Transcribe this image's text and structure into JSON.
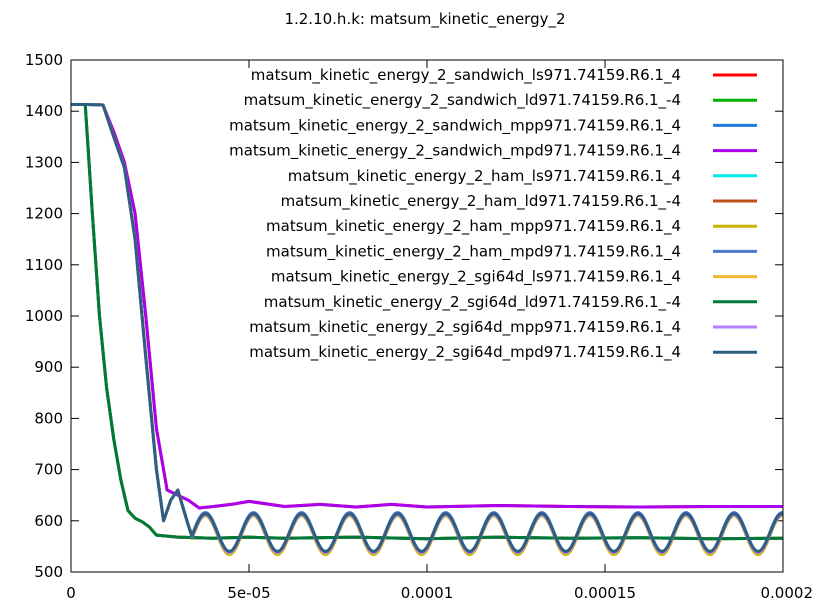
{
  "chart_data": {
    "type": "line",
    "title": "1.2.10.h.k: matsum_kinetic_energy_2",
    "xlabel": "",
    "ylabel": "",
    "xlim": [
      0,
      0.0002
    ],
    "ylim": [
      500,
      1500
    ],
    "x_ticks": [
      0,
      5e-05,
      0.0001,
      0.00015,
      0.0002
    ],
    "x_tick_labels": [
      "0",
      "5e-05",
      "0.0001",
      "0.00015",
      "0.0002"
    ],
    "y_ticks": [
      500,
      600,
      700,
      800,
      900,
      1000,
      1100,
      1200,
      1300,
      1400,
      1500
    ],
    "y_tick_labels": [
      "500",
      "600",
      "700",
      "800",
      "900",
      "1000",
      "1100",
      "1200",
      "1300",
      "1400",
      "1500"
    ],
    "grid": false,
    "legend_position": "top-right",
    "series": [
      {
        "name": "matsum_kinetic_energy_2_sandwich_ls971.74159.R6.1_4",
        "color": "#ff0000",
        "x": [
          0,
          5e-06,
          9e-06,
          1.2e-05,
          1.5e-05,
          1.8e-05,
          2.1e-05,
          2.4e-05,
          2.7e-05,
          3e-05,
          3.3e-05,
          3.6e-05,
          4e-05,
          4.5e-05,
          5e-05,
          6e-05,
          7e-05,
          8e-05,
          9e-05,
          0.0001,
          0.00012,
          0.00014,
          0.00016,
          0.00018,
          0.0002
        ],
        "y": [
          1413,
          1413,
          1412,
          1360,
          1300,
          1200,
          1000,
          780,
          660,
          650,
          640,
          625,
          628,
          632,
          638,
          628,
          632,
          627,
          632,
          627,
          630,
          628,
          627,
          628,
          628
        ]
      },
      {
        "name": "matsum_kinetic_energy_2_sandwich_ld971.74159.R6.1_-4",
        "color": "#00b000",
        "x": [
          0,
          4e-06,
          6e-06,
          8e-06,
          1e-05,
          1.2e-05,
          1.4e-05,
          1.6e-05,
          1.8e-05,
          2e-05,
          2.2e-05,
          2.4e-05,
          3e-05,
          4e-05,
          5e-05,
          6e-05,
          8e-05,
          0.0001,
          0.00012,
          0.00014,
          0.00016,
          0.00018,
          0.0002
        ],
        "y": [
          1413,
          1413,
          1200,
          1000,
          860,
          760,
          680,
          620,
          605,
          598,
          588,
          572,
          568,
          566,
          568,
          566,
          568,
          565,
          568,
          566,
          567,
          565,
          566
        ]
      },
      {
        "name": "matsum_kinetic_energy_2_sandwich_mpp971.74159.R6.1_4",
        "color": "#1e7bd8",
        "type": "oscillating",
        "base": 578,
        "amp": 38,
        "period": 1.35e-05,
        "phase": 3.1e-05
      },
      {
        "name": "matsum_kinetic_energy_2_sandwich_mpd971.74159.R6.1_4",
        "color": "#aa00ee",
        "x": [
          0,
          5e-06,
          9e-06,
          1.2e-05,
          1.5e-05,
          1.8e-05,
          2.1e-05,
          2.4e-05,
          2.7e-05,
          3e-05,
          3.3e-05,
          3.6e-05,
          4e-05,
          4.5e-05,
          5e-05,
          6e-05,
          7e-05,
          8e-05,
          9e-05,
          0.0001,
          0.00012,
          0.00014,
          0.00016,
          0.00018,
          0.0002
        ],
        "y": [
          1413,
          1413,
          1412,
          1360,
          1300,
          1200,
          1000,
          780,
          660,
          650,
          640,
          625,
          628,
          632,
          638,
          628,
          632,
          627,
          632,
          627,
          630,
          628,
          627,
          628,
          628
        ]
      },
      {
        "name": "matsum_kinetic_energy_2_ham_ls971.74159.R6.1_4",
        "color": "#00e8e8",
        "type": "oscillating",
        "base": 575,
        "amp": 36,
        "period": 1.35e-05,
        "phase": 3.1e-05
      },
      {
        "name": "matsum_kinetic_energy_2_ham_ld971.74159.R6.1_-4",
        "color": "#c05018",
        "x": [
          0,
          4e-06,
          6e-06,
          8e-06,
          1e-05,
          1.2e-05,
          1.4e-05,
          1.6e-05,
          1.8e-05,
          2e-05,
          2.2e-05,
          2.4e-05,
          3e-05,
          4e-05,
          5e-05,
          6e-05,
          8e-05,
          0.0001,
          0.00012,
          0.00014,
          0.00016,
          0.00018,
          0.0002
        ],
        "y": [
          1413,
          1413,
          1200,
          1000,
          860,
          760,
          680,
          620,
          605,
          598,
          588,
          572,
          568,
          566,
          568,
          566,
          568,
          565,
          568,
          566,
          567,
          565,
          566
        ]
      },
      {
        "name": "matsum_kinetic_energy_2_ham_mpp971.74159.R6.1_4",
        "color": "#c8b400",
        "type": "oscillating",
        "base": 572,
        "amp": 38,
        "period": 1.35e-05,
        "phase": 3.1e-05
      },
      {
        "name": "matsum_kinetic_energy_2_ham_mpd971.74159.R6.1_4",
        "color": "#4a78d0",
        "type": "oscillating",
        "base": 578,
        "amp": 38,
        "period": 1.35e-05,
        "phase": 3.1e-05
      },
      {
        "name": "matsum_kinetic_energy_2_sgi64d_ls971.74159.R6.1_4",
        "color": "#f0b830",
        "type": "oscillating",
        "base": 574,
        "amp": 37,
        "period": 1.35e-05,
        "phase": 3.1e-05
      },
      {
        "name": "matsum_kinetic_energy_2_sgi64d_ld971.74159.R6.1_-4",
        "color": "#007a3a",
        "x": [
          0,
          4e-06,
          6e-06,
          8e-06,
          1e-05,
          1.2e-05,
          1.4e-05,
          1.6e-05,
          1.8e-05,
          2e-05,
          2.2e-05,
          2.4e-05,
          3e-05,
          4e-05,
          5e-05,
          6e-05,
          8e-05,
          0.0001,
          0.00012,
          0.00014,
          0.00016,
          0.00018,
          0.0002
        ],
        "y": [
          1413,
          1413,
          1200,
          1000,
          860,
          760,
          680,
          620,
          605,
          598,
          588,
          572,
          568,
          566,
          568,
          566,
          568,
          565,
          568,
          566,
          567,
          565,
          566
        ]
      },
      {
        "name": "matsum_kinetic_energy_2_sgi64d_mpp971.74159.R6.1_4",
        "color": "#b080ff",
        "type": "oscillating",
        "base": 575,
        "amp": 37,
        "period": 1.35e-05,
        "phase": 3.1e-05
      },
      {
        "name": "matsum_kinetic_energy_2_sgi64d_mpd971.74159.R6.1_4",
        "color": "#2f5f80",
        "type": "oscillating",
        "base": 577,
        "amp": 37,
        "period": 1.35e-05,
        "phase": 3.1e-05
      }
    ]
  }
}
